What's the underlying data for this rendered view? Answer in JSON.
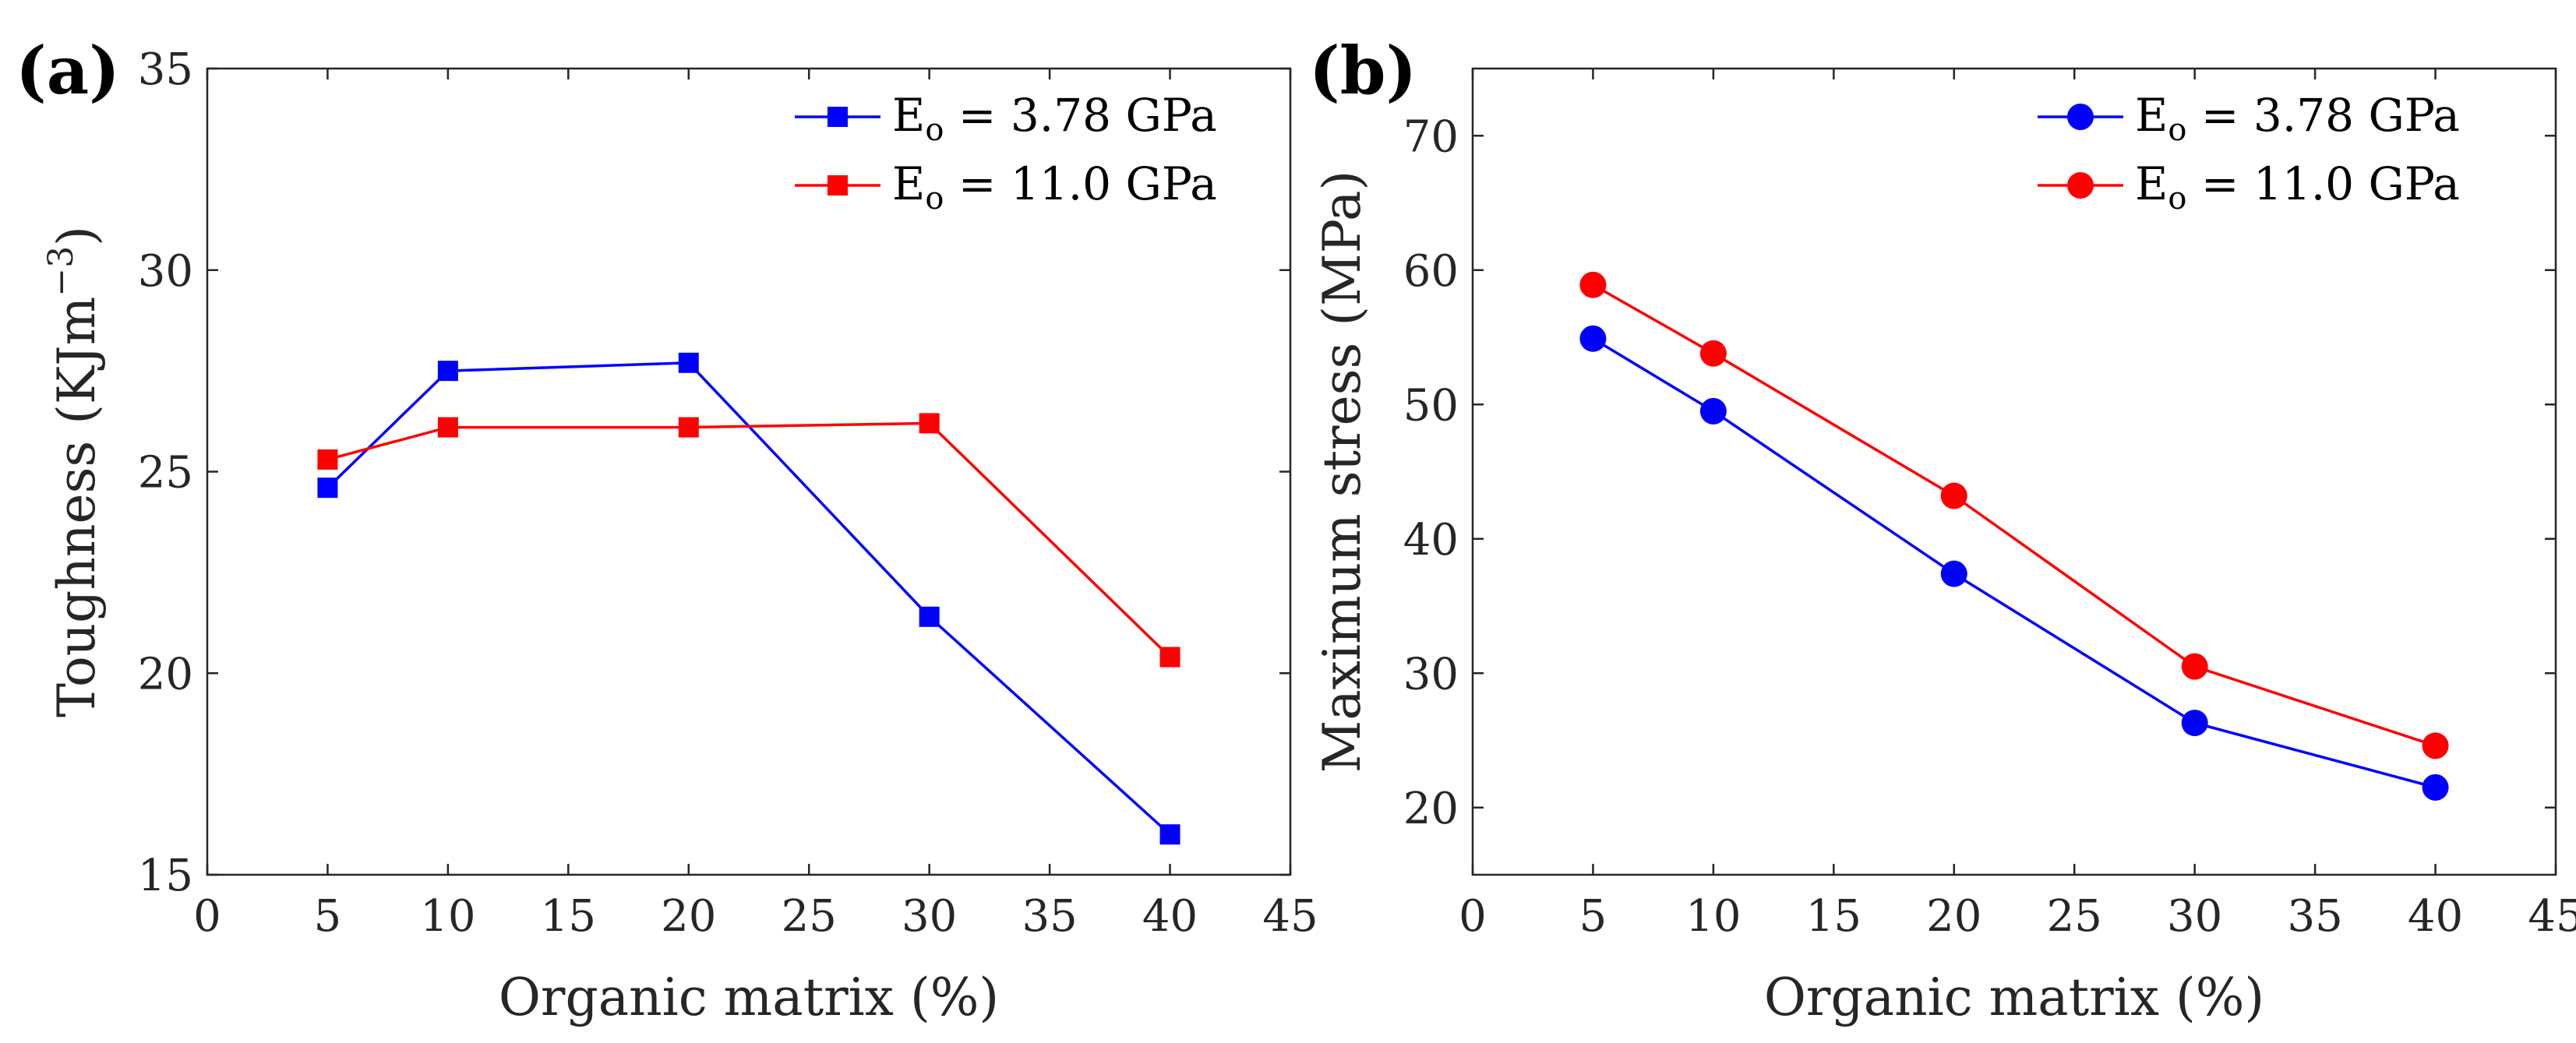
{
  "chart_data": [
    {
      "type": "line",
      "panel_label": "(a)",
      "xlabel": "Organic matrix (%)",
      "ylabel": {
        "main": "Toughness (KJm",
        "sup": "−3",
        "close": ")"
      },
      "xlim": [
        0,
        45
      ],
      "ylim": [
        15,
        35
      ],
      "xticks": [
        "0",
        "5",
        "10",
        "15",
        "20",
        "25",
        "30",
        "35",
        "40",
        "45"
      ],
      "yticks": [
        "15",
        "20",
        "25",
        "30",
        "35"
      ],
      "marker": "square",
      "legend_position": "top-right",
      "x": [
        5,
        10,
        20,
        30,
        40
      ],
      "series": [
        {
          "name": {
            "base": "E",
            "sub": "o",
            "rest": " = 3.78 GPa"
          },
          "color": "#0000ff",
          "values": [
            24.6,
            27.5,
            27.7,
            21.4,
            16.0
          ]
        },
        {
          "name": {
            "base": "E",
            "sub": "o",
            "rest": " = 11.0 GPa"
          },
          "color": "#ff0000",
          "values": [
            25.3,
            26.1,
            26.1,
            26.2,
            20.4
          ]
        }
      ]
    },
    {
      "type": "line",
      "panel_label": "(b)",
      "xlabel": "Organic matrix (%)",
      "ylabel": {
        "main": "Maximum stress (MPa)",
        "sup": "",
        "close": ""
      },
      "xlim": [
        0,
        45
      ],
      "ylim": [
        15,
        75
      ],
      "xticks": [
        "0",
        "5",
        "10",
        "15",
        "20",
        "25",
        "30",
        "35",
        "40",
        "45"
      ],
      "yticks": [
        "20",
        "30",
        "40",
        "50",
        "60",
        "70"
      ],
      "marker": "circle",
      "legend_position": "top-right",
      "x": [
        5,
        10,
        20,
        30,
        40
      ],
      "series": [
        {
          "name": {
            "base": "E",
            "sub": "o",
            "rest": " = 3.78 GPa"
          },
          "color": "#0000ff",
          "values": [
            54.9,
            49.5,
            37.4,
            26.3,
            21.5
          ]
        },
        {
          "name": {
            "base": "E",
            "sub": "o",
            "rest": " = 11.0 GPa"
          },
          "color": "#ff0000",
          "values": [
            58.9,
            53.8,
            43.2,
            30.5,
            24.6
          ]
        }
      ]
    }
  ]
}
